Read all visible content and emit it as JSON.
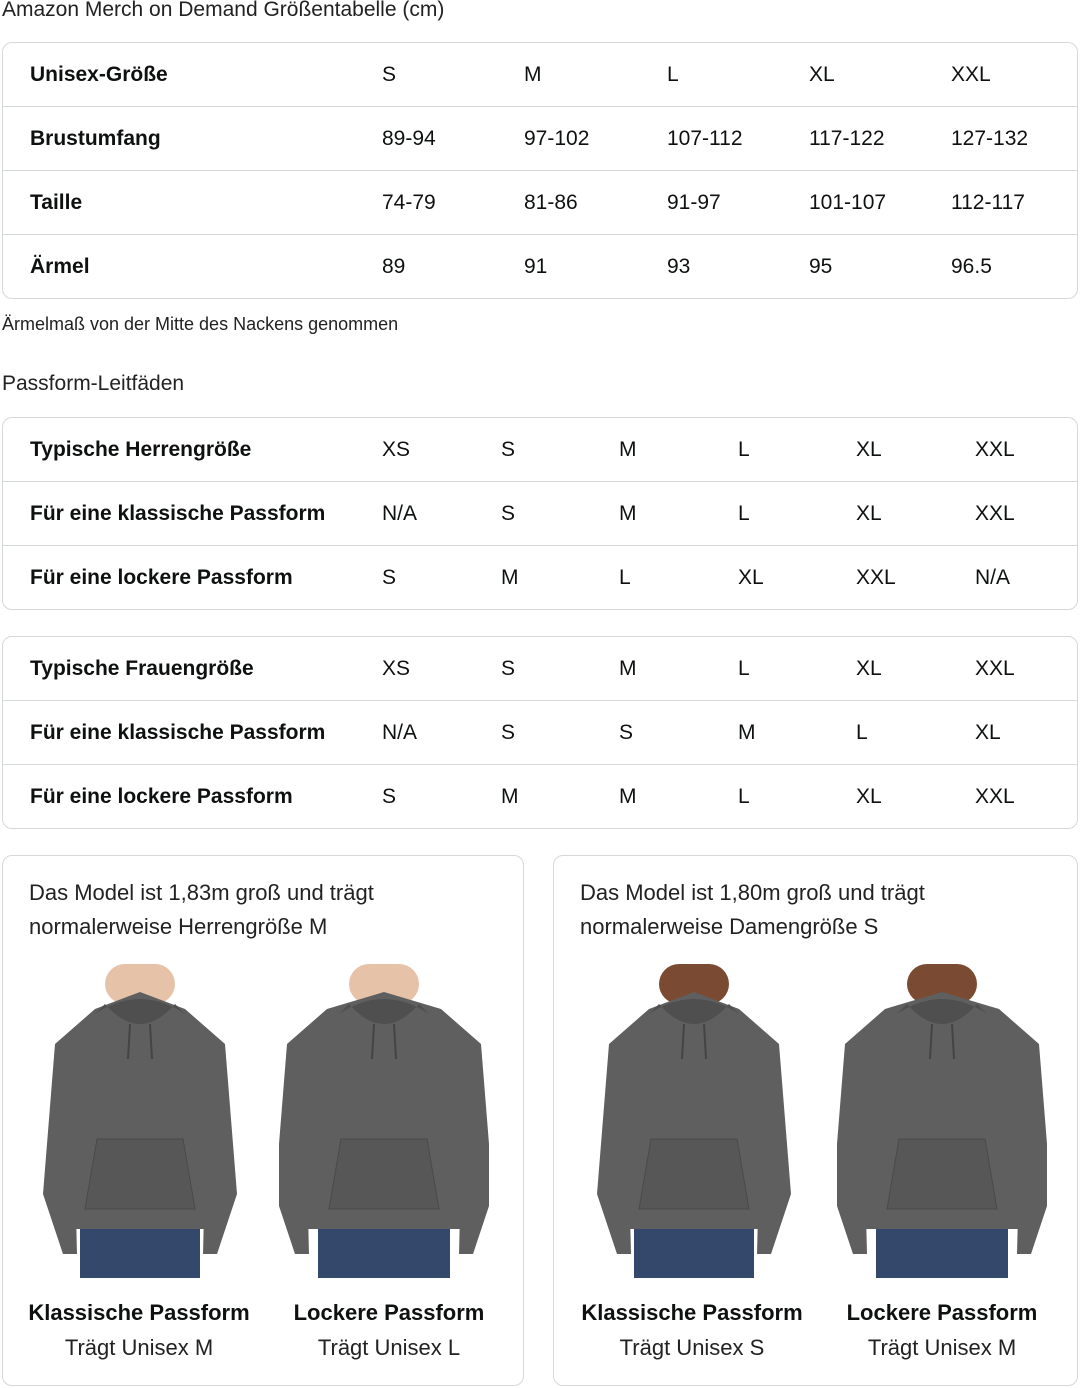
{
  "title": "Amazon Merch on Demand Größentabelle (cm)",
  "unisex_table": {
    "rows": [
      {
        "label": "Unisex-Größe",
        "values": [
          "S",
          "M",
          "L",
          "XL",
          "XXL"
        ]
      },
      {
        "label": "Brustumfang",
        "values": [
          "89-94",
          "97-102",
          "107-112",
          "117-122",
          "127-132"
        ]
      },
      {
        "label": "Taille",
        "values": [
          "74-79",
          "81-86",
          "91-97",
          "101-107",
          "112-117"
        ]
      },
      {
        "label": "Ärmel",
        "values": [
          "89",
          "91",
          "93",
          "95",
          "96.5"
        ]
      }
    ]
  },
  "note": "Ärmelmaß von der Mitte des Nackens genommen",
  "fit_title": "Passform-Leitfäden",
  "men_table": {
    "rows": [
      {
        "label": "Typische Herrengröße",
        "values": [
          "XS",
          "S",
          "M",
          "L",
          "XL",
          "XXL"
        ]
      },
      {
        "label": "Für eine klassische Passform",
        "values": [
          "N/A",
          "S",
          "M",
          "L",
          "XL",
          "XXL"
        ]
      },
      {
        "label": "Für eine lockere Passform",
        "values": [
          "S",
          "M",
          "L",
          "XL",
          "XXL",
          "N/A"
        ]
      }
    ]
  },
  "women_table": {
    "rows": [
      {
        "label": "Typische Frauengröße",
        "values": [
          "XS",
          "S",
          "M",
          "L",
          "XL",
          "XXL"
        ]
      },
      {
        "label": "Für eine klassische Passform",
        "values": [
          "N/A",
          "S",
          "S",
          "M",
          "L",
          "XL"
        ]
      },
      {
        "label": "Für eine lockere Passform",
        "values": [
          "S",
          "M",
          "M",
          "L",
          "XL",
          "XXL"
        ]
      }
    ]
  },
  "models": [
    {
      "description": "Das Model ist 1,83m groß und trägt normalerweise Herrengröße M",
      "fits": [
        {
          "name": "Klassische Passform",
          "wears": "Trägt Unisex M"
        },
        {
          "name": "Lockere Passform",
          "wears": "Trägt Unisex L"
        }
      ]
    },
    {
      "description": "Das Model ist 1,80m groß und trägt normalerweise Damengröße S",
      "fits": [
        {
          "name": "Klassische Passform",
          "wears": "Trägt Unisex S"
        },
        {
          "name": "Lockere Passform",
          "wears": "Trägt Unisex M"
        }
      ]
    }
  ],
  "colors": {
    "hoodie": "#5f5f5f",
    "border": "#d5d9d9",
    "jeans": "#34486b",
    "skin_light": "#e5c2a8",
    "skin_dark": "#7a4b32"
  }
}
